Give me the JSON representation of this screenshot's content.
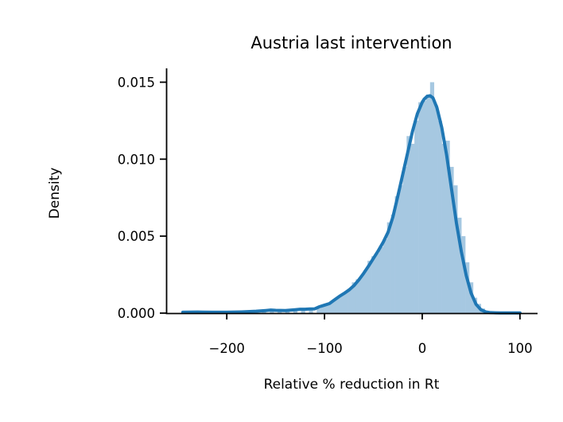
{
  "chart_data": {
    "type": "histogram",
    "title": "Austria last intervention",
    "xlabel": "Relative % reduction in Rt",
    "ylabel": "Density",
    "xlim": [
      -262,
      118
    ],
    "ylim": [
      0,
      0.0159
    ],
    "xticks": [
      -200,
      -100,
      0,
      100
    ],
    "xtick_labels": [
      "−200",
      "−100",
      "0",
      "100"
    ],
    "yticks": [
      0.0,
      0.005,
      0.01,
      0.015
    ],
    "ytick_labels": [
      "0.000",
      "0.005",
      "0.010",
      "0.015"
    ],
    "grid": false,
    "legend": "none",
    "colors": {
      "bars": "#a6c8e1",
      "kde": "#1f77b4",
      "axes": "#000000"
    },
    "histogram": {
      "bin_width": 4,
      "bins": [
        {
          "x0": -244,
          "density": 5e-05
        },
        {
          "x0": -224,
          "density": 4e-05
        },
        {
          "x0": -204,
          "density": 5e-05
        },
        {
          "x0": -184,
          "density": 6e-05
        },
        {
          "x0": -164,
          "density": 0.00012
        },
        {
          "x0": -156,
          "density": 0.00015
        },
        {
          "x0": -148,
          "density": 0.0001
        },
        {
          "x0": -140,
          "density": 0.00014
        },
        {
          "x0": -132,
          "density": 0.0002
        },
        {
          "x0": -124,
          "density": 0.00022
        },
        {
          "x0": -116,
          "density": 0.00018
        },
        {
          "x0": -108,
          "density": 0.0003
        },
        {
          "x0": -104,
          "density": 0.00045
        },
        {
          "x0": -100,
          "density": 0.00055
        },
        {
          "x0": -96,
          "density": 0.00065
        },
        {
          "x0": -92,
          "density": 0.0009
        },
        {
          "x0": -88,
          "density": 0.001
        },
        {
          "x0": -84,
          "density": 0.0012
        },
        {
          "x0": -80,
          "density": 0.0014
        },
        {
          "x0": -76,
          "density": 0.0016
        },
        {
          "x0": -72,
          "density": 0.002
        },
        {
          "x0": -68,
          "density": 0.0022
        },
        {
          "x0": -64,
          "density": 0.0024
        },
        {
          "x0": -60,
          "density": 0.0028
        },
        {
          "x0": -56,
          "density": 0.0034
        },
        {
          "x0": -52,
          "density": 0.0037
        },
        {
          "x0": -48,
          "density": 0.0039
        },
        {
          "x0": -44,
          "density": 0.0043
        },
        {
          "x0": -40,
          "density": 0.0048
        },
        {
          "x0": -36,
          "density": 0.0059
        },
        {
          "x0": -32,
          "density": 0.0064
        },
        {
          "x0": -28,
          "density": 0.0076
        },
        {
          "x0": -24,
          "density": 0.0083
        },
        {
          "x0": -20,
          "density": 0.0095
        },
        {
          "x0": -16,
          "density": 0.0115
        },
        {
          "x0": -12,
          "density": 0.011
        },
        {
          "x0": -8,
          "density": 0.0125
        },
        {
          "x0": -4,
          "density": 0.0137
        },
        {
          "x0": 0,
          "density": 0.0138
        },
        {
          "x0": 4,
          "density": 0.0142
        },
        {
          "x0": 8,
          "density": 0.015
        },
        {
          "x0": 12,
          "density": 0.0135
        },
        {
          "x0": 16,
          "density": 0.0125
        },
        {
          "x0": 20,
          "density": 0.011
        },
        {
          "x0": 24,
          "density": 0.0112
        },
        {
          "x0": 28,
          "density": 0.0095
        },
        {
          "x0": 32,
          "density": 0.0083
        },
        {
          "x0": 36,
          "density": 0.0062
        },
        {
          "x0": 40,
          "density": 0.005
        },
        {
          "x0": 44,
          "density": 0.0033
        },
        {
          "x0": 48,
          "density": 0.002
        },
        {
          "x0": 52,
          "density": 0.001
        },
        {
          "x0": 56,
          "density": 0.0006
        },
        {
          "x0": 60,
          "density": 0.0003
        },
        {
          "x0": 64,
          "density": 0.0001
        },
        {
          "x0": 68,
          "density": 4e-05
        }
      ]
    },
    "kde": {
      "x": [
        -245,
        -230,
        -215,
        -200,
        -185,
        -170,
        -160,
        -155,
        -150,
        -140,
        -130,
        -125,
        -120,
        -115,
        -110,
        -105,
        -100,
        -95,
        -90,
        -85,
        -80,
        -75,
        -70,
        -65,
        -60,
        -55,
        -50,
        -45,
        -40,
        -35,
        -30,
        -25,
        -20,
        -15,
        -10,
        -5,
        0,
        2,
        5,
        8,
        11,
        15,
        20,
        25,
        30,
        35,
        40,
        45,
        50,
        55,
        60,
        65,
        70,
        75,
        80,
        90,
        100
      ],
      "y": [
        6e-05,
        7e-05,
        6e-05,
        6e-05,
        8e-05,
        0.00012,
        0.00017,
        0.0002,
        0.00018,
        0.00017,
        0.00022,
        0.00025,
        0.00025,
        0.00027,
        0.00028,
        0.00042,
        0.00052,
        0.00062,
        0.00085,
        0.00108,
        0.00128,
        0.0015,
        0.00178,
        0.00215,
        0.00258,
        0.00305,
        0.00355,
        0.00405,
        0.0046,
        0.00525,
        0.00625,
        0.0076,
        0.009,
        0.0104,
        0.0118,
        0.01295,
        0.0137,
        0.0139,
        0.01408,
        0.01412,
        0.01398,
        0.01335,
        0.01205,
        0.01025,
        0.00805,
        0.00585,
        0.004,
        0.00245,
        0.0013,
        0.00058,
        0.00022,
        8e-05,
        3e-05,
        2e-05,
        1e-05,
        1e-05,
        1e-05
      ]
    }
  }
}
